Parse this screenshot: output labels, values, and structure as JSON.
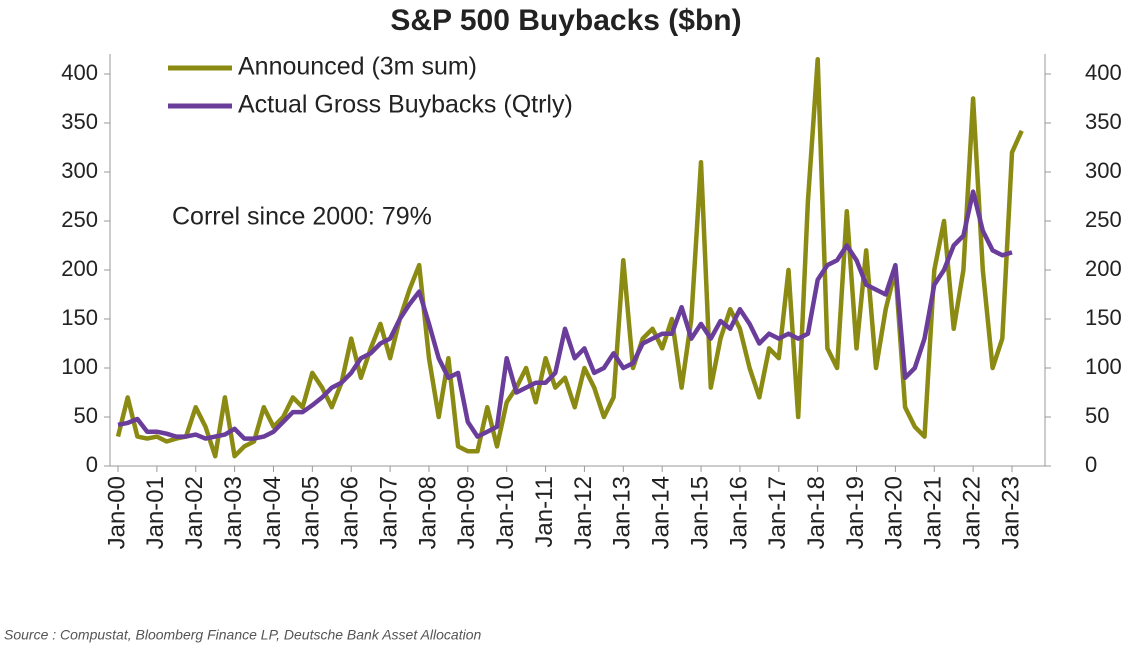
{
  "chart_data": {
    "type": "line",
    "title": "S&P 500 Buybacks ($bn)",
    "annotation": "Correl since 2000: 79%",
    "source": "Source : Compustat, Bloomberg Finance LP, Deutsche Bank Asset Allocation",
    "categories": [
      "Jan-00",
      null,
      null,
      null,
      "Jan-01",
      null,
      null,
      null,
      "Jan-02",
      null,
      null,
      null,
      "Jan-03",
      null,
      null,
      null,
      "Jan-04",
      null,
      null,
      null,
      "Jan-05",
      null,
      null,
      null,
      "Jan-06",
      null,
      null,
      null,
      "Jan-07",
      null,
      null,
      null,
      "Jan-08",
      null,
      null,
      null,
      "Jan-09",
      null,
      null,
      null,
      "Jan-10",
      null,
      null,
      null,
      "Jan-11",
      null,
      null,
      null,
      "Jan-12",
      null,
      null,
      null,
      "Jan-13",
      null,
      null,
      null,
      "Jan-14",
      null,
      null,
      null,
      "Jan-15",
      null,
      null,
      null,
      "Jan-16",
      null,
      null,
      null,
      "Jan-17",
      null,
      null,
      null,
      "Jan-18",
      null,
      null,
      null,
      "Jan-19",
      null,
      null,
      null,
      "Jan-20",
      null,
      null,
      null,
      "Jan-21",
      null,
      null,
      null,
      "Jan-22",
      null,
      null,
      null,
      "Jan-23",
      null
    ],
    "series": [
      {
        "name": "Announced (3m sum)",
        "color": "#8b8a12",
        "values": [
          30,
          70,
          30,
          28,
          30,
          25,
          28,
          30,
          60,
          40,
          10,
          70,
          10,
          20,
          25,
          60,
          40,
          50,
          70,
          60,
          95,
          80,
          60,
          85,
          130,
          90,
          120,
          145,
          110,
          150,
          180,
          205,
          110,
          50,
          110,
          20,
          15,
          15,
          60,
          20,
          65,
          80,
          100,
          65,
          110,
          80,
          90,
          60,
          100,
          80,
          50,
          70,
          210,
          100,
          130,
          140,
          120,
          150,
          80,
          150,
          310,
          80,
          130,
          160,
          140,
          100,
          70,
          120,
          110,
          200,
          50,
          270,
          415,
          120,
          100,
          260,
          120,
          220,
          100,
          160,
          200,
          60,
          40,
          30,
          200,
          250,
          140,
          200,
          375,
          200,
          100,
          130,
          320,
          342
        ]
      },
      {
        "name": "Actual Gross Buybacks (Qtrly)",
        "color": "#6a3d9a",
        "axis": "y2",
        "values": [
          42,
          44,
          48,
          35,
          35,
          33,
          30,
          30,
          32,
          28,
          30,
          32,
          38,
          28,
          28,
          30,
          35,
          45,
          55,
          55,
          62,
          70,
          80,
          85,
          95,
          110,
          115,
          125,
          130,
          150,
          165,
          178,
          145,
          110,
          90,
          95,
          45,
          30,
          35,
          40,
          110,
          75,
          80,
          85,
          85,
          95,
          140,
          110,
          120,
          95,
          100,
          115,
          100,
          105,
          125,
          130,
          135,
          135,
          162,
          130,
          145,
          130,
          148,
          140,
          160,
          145,
          125,
          135,
          130,
          135,
          130,
          135,
          190,
          205,
          210,
          225,
          210,
          185,
          180,
          175,
          205,
          90,
          100,
          130,
          185,
          200,
          225,
          235,
          280,
          240,
          220,
          215,
          218,
          null
        ]
      }
    ],
    "ylim": [
      0,
      400
    ],
    "yticks": [
      0,
      50,
      100,
      150,
      200,
      250,
      300,
      350,
      400
    ],
    "y2lim": [
      0,
      400
    ],
    "y2ticks": [
      0,
      50,
      100,
      150,
      200,
      250,
      300,
      350,
      400
    ],
    "legend": "top-left"
  }
}
